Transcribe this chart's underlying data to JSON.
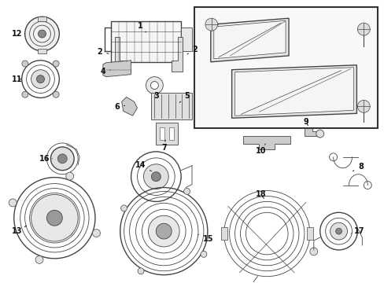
{
  "bg_color": "#ffffff",
  "line_color": "#444444",
  "label_color": "#111111",
  "figsize": [
    4.89,
    3.6
  ],
  "dpi": 100
}
